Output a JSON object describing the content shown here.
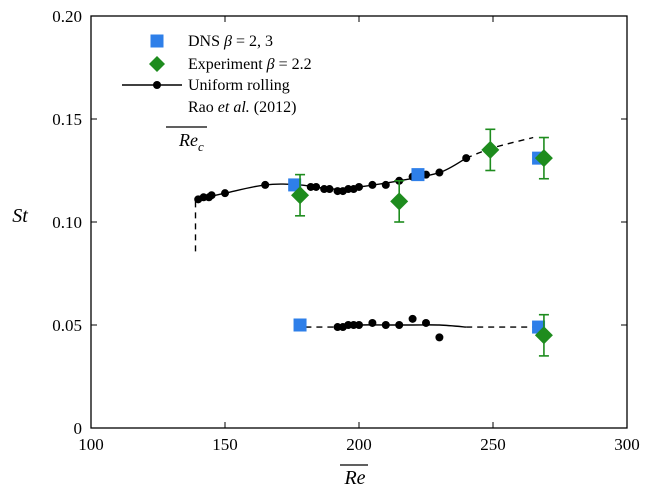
{
  "chart_data": {
    "type": "scatter",
    "xlabel": "Re",
    "ylabel": "St",
    "xlim": [
      100,
      300
    ],
    "ylim": [
      0,
      0.2
    ],
    "x_ticks": [
      100,
      150,
      200,
      250,
      300
    ],
    "y_ticks": [
      0,
      0.05,
      0.1,
      0.15,
      0.2
    ],
    "x_tick_labels": [
      "100",
      "150",
      "200",
      "250",
      "300"
    ],
    "y_tick_labels": [
      "0",
      "0.05",
      "0.10",
      "0.15",
      "0.20"
    ],
    "grid": false,
    "legend_position": "top-left",
    "legend": [
      {
        "label_pre": "DNS ",
        "label_italic": "β",
        "label_post": " = 2, 3",
        "marker": "square",
        "color": "#2e7fe9"
      },
      {
        "label_pre": "Experiment ",
        "label_italic": "β",
        "label_post": " = 2.2",
        "marker": "diamond",
        "color": "#1e8c1e"
      },
      {
        "label_pre": "Uniform rolling",
        "label_italic": "",
        "label_post": "",
        "marker": "line-dot",
        "color": "#000000"
      },
      {
        "label_pre": "Rao ",
        "label_italic": "et al.",
        "label_post": " (2012)",
        "marker": "none",
        "color": "#000000"
      }
    ],
    "annotation": {
      "text": "Re",
      "subscript": "c"
    },
    "series": [
      {
        "name": "DNS β = 2, 3",
        "marker": "square",
        "color": "#2e7fe9",
        "points": [
          [
            176,
            0.118
          ],
          [
            222,
            0.123
          ],
          [
            267,
            0.131
          ],
          [
            178,
            0.05
          ],
          [
            267,
            0.049
          ]
        ]
      },
      {
        "name": "Experiment β = 2.2",
        "marker": "diamond",
        "color": "#1e8c1e",
        "points": [
          {
            "x": 178,
            "y": 0.113,
            "err": 0.01
          },
          {
            "x": 215,
            "y": 0.11,
            "err": 0.01
          },
          {
            "x": 249,
            "y": 0.135,
            "err": 0.01
          },
          {
            "x": 269,
            "y": 0.131,
            "err": 0.01
          },
          {
            "x": 269,
            "y": 0.045,
            "err": 0.01
          }
        ]
      },
      {
        "name": "Uniform rolling",
        "marker": "dot",
        "color": "#000000",
        "upper_points": [
          [
            140,
            0.111
          ],
          [
            142,
            0.112
          ],
          [
            144,
            0.112
          ],
          [
            145,
            0.113
          ],
          [
            150,
            0.114
          ],
          [
            165,
            0.118
          ],
          [
            182,
            0.117
          ],
          [
            184,
            0.117
          ],
          [
            187,
            0.116
          ],
          [
            189,
            0.116
          ],
          [
            192,
            0.115
          ],
          [
            194,
            0.115
          ],
          [
            196,
            0.116
          ],
          [
            198,
            0.116
          ],
          [
            200,
            0.117
          ],
          [
            205,
            0.118
          ],
          [
            210,
            0.118
          ],
          [
            215,
            0.12
          ],
          [
            220,
            0.122
          ],
          [
            225,
            0.123
          ],
          [
            230,
            0.124
          ],
          [
            240,
            0.131
          ]
        ],
        "upper_curve": [
          [
            140,
            0.111
          ],
          [
            150,
            0.114
          ],
          [
            165,
            0.118
          ],
          [
            178,
            0.118
          ],
          [
            190,
            0.116
          ],
          [
            200,
            0.117
          ],
          [
            215,
            0.12
          ],
          [
            230,
            0.124
          ],
          [
            240,
            0.131
          ]
        ],
        "upper_dashed": [
          [
            240,
            0.131
          ],
          [
            250,
            0.136
          ],
          [
            265,
            0.141
          ]
        ],
        "onset_dashed": [
          [
            139,
            0.11
          ],
          [
            139,
            0.084
          ]
        ],
        "lower_points": [
          [
            192,
            0.049
          ],
          [
            194,
            0.049
          ],
          [
            196,
            0.05
          ],
          [
            198,
            0.05
          ],
          [
            200,
            0.05
          ],
          [
            205,
            0.051
          ],
          [
            210,
            0.05
          ],
          [
            215,
            0.05
          ],
          [
            220,
            0.053
          ],
          [
            225,
            0.051
          ],
          [
            230,
            0.044
          ]
        ],
        "lower_curve": [
          [
            192,
            0.049
          ],
          [
            200,
            0.05
          ],
          [
            210,
            0.05
          ],
          [
            220,
            0.05
          ],
          [
            230,
            0.05
          ],
          [
            240,
            0.049
          ]
        ],
        "lower_dashed_left": [
          [
            180,
            0.049
          ],
          [
            192,
            0.049
          ]
        ],
        "lower_dashed_right": [
          [
            240,
            0.049
          ],
          [
            268,
            0.049
          ]
        ]
      }
    ]
  }
}
